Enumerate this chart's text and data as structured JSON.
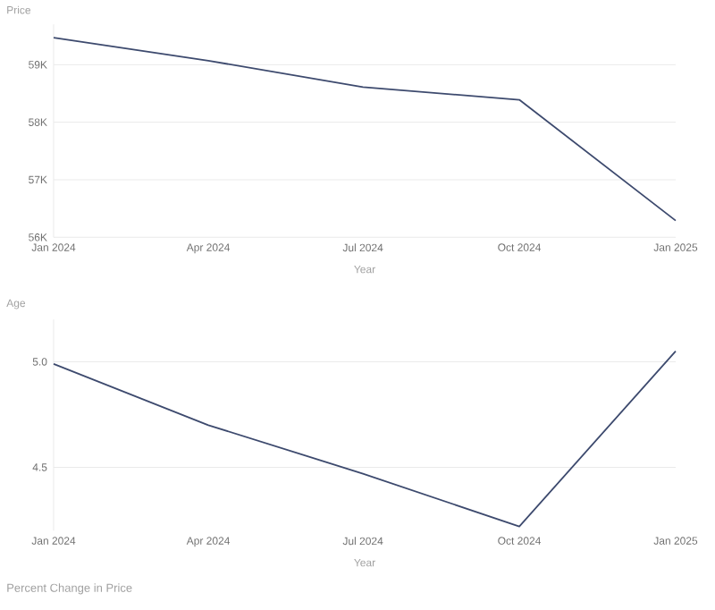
{
  "chart_data": [
    {
      "type": "line",
      "ylabel": "Price",
      "xlabel": "Year",
      "x": [
        "2024-01",
        "2024-04",
        "2024-07",
        "2024-10",
        "2025-01"
      ],
      "series": [
        {
          "color": "#3d4a6e",
          "values": [
            59470,
            59070,
            58610,
            58390,
            56290
          ]
        }
      ],
      "xlim": [
        "2024-01",
        "2025-01"
      ],
      "ylim": [
        56000,
        59700
      ],
      "xticks": [
        {
          "value": "2024-01",
          "label": "Jan 2024"
        },
        {
          "value": "2024-04",
          "label": "Apr 2024"
        },
        {
          "value": "2024-07",
          "label": "Jul 2024"
        },
        {
          "value": "2024-10",
          "label": "Oct 2024"
        },
        {
          "value": "2025-01",
          "label": "Jan 2025"
        }
      ],
      "yticks": [
        {
          "value": 56000,
          "label": "56K"
        },
        {
          "value": 57000,
          "label": "57K"
        },
        {
          "value": 58000,
          "label": "58K"
        },
        {
          "value": 59000,
          "label": "59K"
        }
      ],
      "grid": "y",
      "marker": "none",
      "line_style": "solid"
    },
    {
      "type": "line",
      "ylabel": "Age",
      "xlabel": "Year",
      "x": [
        "2024-01",
        "2024-04",
        "2024-07",
        "2024-10",
        "2025-01"
      ],
      "series": [
        {
          "color": "#3d4a6e",
          "values": [
            4.99,
            4.7,
            4.47,
            4.22,
            5.05
          ]
        }
      ],
      "xlim": [
        "2024-01",
        "2025-01"
      ],
      "ylim": [
        4.2,
        5.2
      ],
      "xticks": [
        {
          "value": "2024-01",
          "label": "Jan 2024"
        },
        {
          "value": "2024-04",
          "label": "Apr 2024"
        },
        {
          "value": "2024-07",
          "label": "Jul 2024"
        },
        {
          "value": "2024-10",
          "label": "Oct 2024"
        },
        {
          "value": "2025-01",
          "label": "Jan 2025"
        }
      ],
      "yticks": [
        {
          "value": 4.5,
          "label": "4.5"
        },
        {
          "value": 5.0,
          "label": "5.0"
        }
      ],
      "grid": "y",
      "marker": "none",
      "line_style": "solid",
      "annotations": [
        "Percent Change in Price"
      ]
    }
  ]
}
